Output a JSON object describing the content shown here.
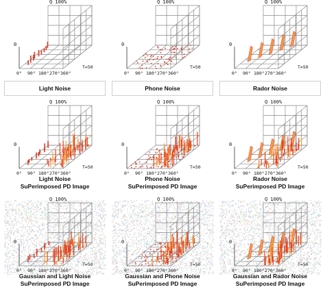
{
  "axis_text": {
    "q_label": "Q 100%",
    "zero": "0",
    "phase_ticks": [
      "0°",
      "90°",
      "180°",
      "270°",
      "360°"
    ],
    "t_label": "T=50"
  },
  "tiles": [
    {
      "kind": "light",
      "noise": false,
      "name": "Light Noise",
      "caption": [
        "Light Noise"
      ]
    },
    {
      "kind": "phone",
      "noise": false,
      "name": "Phone Noise",
      "caption": [
        "Phone Noise"
      ]
    },
    {
      "kind": "rador",
      "noise": false,
      "name": "Rador Noise",
      "caption": [
        "Rador Noise"
      ]
    },
    {
      "kind": "light_pd",
      "noise": false,
      "name": "Light Noise SuPerimposed PD Image",
      "caption": [
        "Light Noise",
        "SuPerimposed PD Image"
      ]
    },
    {
      "kind": "phone_pd",
      "noise": false,
      "name": "Phone Noise SuPerimposed PD Image",
      "caption": [
        "Phone Noise",
        "SuPerimposed PD Image"
      ]
    },
    {
      "kind": "rador_pd",
      "noise": false,
      "name": "Rador Noise SuPerimposed PD Image",
      "caption": [
        "Rador Noise",
        "SuPerimposed PD Image"
      ]
    },
    {
      "kind": "light_pd",
      "noise": true,
      "name": "Gaussian and Light Noise SuPerimposed PD Image",
      "caption": [
        "Gaussian and Light Noise",
        "SuPerimposed PD Image"
      ]
    },
    {
      "kind": "phone_pd",
      "noise": true,
      "name": "Gaussian and Phone Noise SuPerimposed PD Image",
      "caption": [
        "Gaussian and Phone Noise",
        "SuPerimposed PD Image"
      ]
    },
    {
      "kind": "rador_pd",
      "noise": true,
      "name": "Gaussian and Rador Noise SuPerimposed PD Image",
      "caption": [
        "Gaussian and Rador Noise",
        "SuPerimposed PD Image"
      ]
    }
  ],
  "colors": {
    "grid": "#8a8a8a",
    "pd_red": "#e8401c",
    "pd_orange": "#f4a040",
    "noise_red": "#d63a2a",
    "noise_orange": "#f09a50",
    "text": "#111111"
  }
}
